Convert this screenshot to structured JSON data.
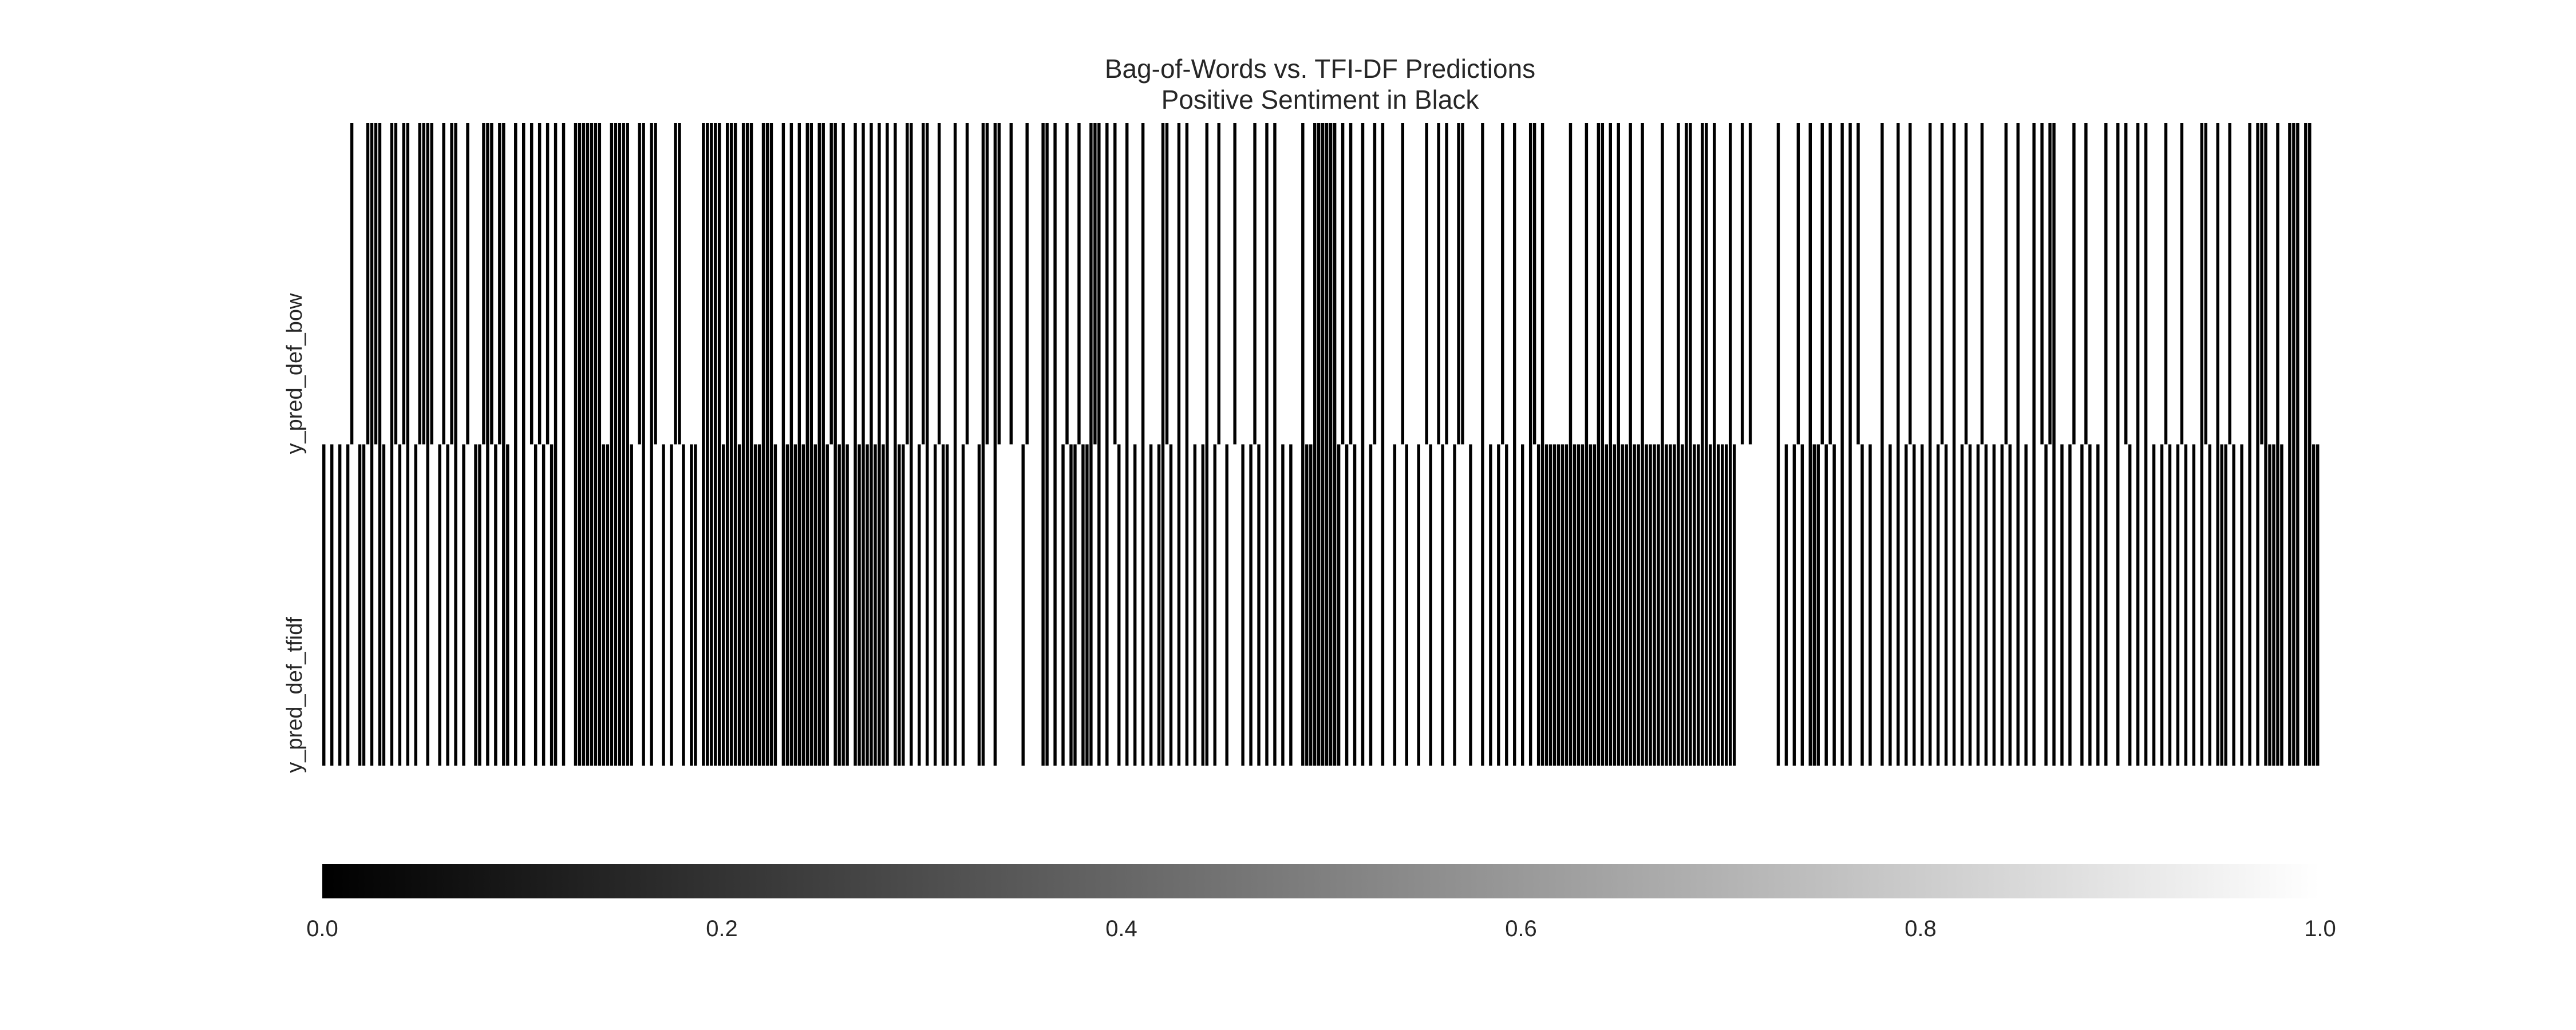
{
  "chart_data": {
    "type": "heatmap",
    "title": "Bag-of-Words vs. TFI-DF Predictions",
    "subtitle": "Positive Sentiment in Black",
    "rows": [
      "y_pred_def_bow",
      "y_pred_def_tfidf"
    ],
    "n_columns": 500,
    "encoding": "0 = black (positive), 1 = white",
    "positive_columns": {
      "y_pred_def_bow": [
        7,
        11,
        12,
        13,
        14,
        17,
        18,
        20,
        21,
        24,
        25,
        26,
        27,
        30,
        32,
        33,
        36,
        40,
        41,
        42,
        44,
        45,
        48,
        50,
        52,
        54,
        56,
        58,
        60,
        63,
        64,
        65,
        66,
        67,
        68,
        69,
        72,
        73,
        74,
        75,
        76,
        79,
        80,
        82,
        83,
        88,
        89,
        95,
        96,
        97,
        98,
        99,
        101,
        102,
        103,
        105,
        106,
        107,
        110,
        111,
        112,
        115,
        117,
        119,
        121,
        122,
        124,
        125,
        127,
        128,
        130,
        133,
        135,
        137,
        139,
        141,
        143,
        146,
        147,
        150,
        151,
        154,
        158,
        161,
        165,
        166,
        168,
        169,
        172,
        176,
        180,
        181,
        183,
        186,
        189,
        192,
        193,
        194,
        196,
        198,
        201,
        205,
        210,
        211,
        214,
        216,
        221,
        224,
        228,
        233,
        236,
        238,
        245,
        248,
        249,
        250,
        251,
        252,
        253,
        255,
        257,
        260,
        263,
        265,
        270,
        276,
        279,
        281,
        284,
        285,
        290,
        295,
        298,
        302,
        303,
        305,
        312,
        316,
        319,
        320,
        322,
        324,
        327,
        330,
        335,
        339,
        341,
        342,
        345,
        346,
        348,
        352,
        355,
        357,
        364,
        369,
        372,
        375,
        377,
        380,
        382,
        384,
        390,
        394,
        397,
        402,
        405,
        408,
        411,
        415,
        421,
        424,
        428,
        430,
        432,
        433,
        438,
        441,
        446,
        449,
        451,
        454,
        456,
        461,
        465,
        470,
        471,
        474,
        477,
        482,
        484,
        485,
        486,
        489,
        492,
        493,
        494,
        496,
        497
      ],
      "y_pred_def_tfidf": [
        0,
        2,
        4,
        6,
        9,
        10,
        12,
        14,
        15,
        17,
        19,
        21,
        23,
        26,
        29,
        31,
        33,
        35,
        38,
        39,
        41,
        43,
        45,
        46,
        48,
        50,
        53,
        55,
        57,
        58,
        60,
        63,
        64,
        65,
        66,
        67,
        68,
        69,
        70,
        71,
        72,
        73,
        74,
        75,
        76,
        77,
        80,
        82,
        85,
        87,
        90,
        92,
        93,
        95,
        96,
        97,
        98,
        99,
        100,
        101,
        102,
        103,
        104,
        105,
        106,
        107,
        108,
        109,
        110,
        111,
        112,
        113,
        115,
        116,
        117,
        118,
        119,
        120,
        121,
        122,
        123,
        124,
        125,
        126,
        128,
        129,
        130,
        131,
        133,
        134,
        135,
        136,
        137,
        138,
        139,
        140,
        141,
        143,
        144,
        145,
        147,
        149,
        151,
        153,
        155,
        156,
        158,
        160,
        164,
        165,
        168,
        175,
        180,
        181,
        183,
        185,
        187,
        188,
        190,
        191,
        192,
        194,
        196,
        199,
        201,
        203,
        205,
        207,
        209,
        210,
        212,
        214,
        216,
        218,
        220,
        221,
        223,
        226,
        230,
        232,
        234,
        236,
        238,
        240,
        242,
        245,
        246,
        247,
        248,
        249,
        250,
        251,
        252,
        253,
        254,
        256,
        258,
        260,
        262,
        265,
        268,
        271,
        274,
        277,
        280,
        283,
        287,
        290,
        292,
        294,
        296,
        298,
        300,
        302,
        304,
        305,
        306,
        307,
        308,
        309,
        310,
        311,
        312,
        313,
        314,
        315,
        316,
        317,
        318,
        319,
        320,
        321,
        322,
        323,
        324,
        325,
        326,
        327,
        328,
        329,
        330,
        331,
        332,
        333,
        334,
        335,
        336,
        337,
        338,
        339,
        340,
        341,
        342,
        343,
        344,
        345,
        346,
        347,
        348,
        349,
        350,
        351,
        352,
        353,
        364,
        366,
        368,
        370,
        372,
        373,
        374,
        376,
        378,
        380,
        382,
        385,
        387,
        390,
        392,
        394,
        396,
        398,
        400,
        402,
        404,
        406,
        408,
        410,
        412,
        414,
        416,
        418,
        420,
        422,
        424,
        426,
        428,
        431,
        433,
        435,
        437,
        440,
        442,
        444,
        446,
        449,
        452,
        454,
        456,
        458,
        460,
        462,
        464,
        466,
        468,
        470,
        472,
        474,
        475,
        476,
        478,
        480,
        482,
        484,
        486,
        487,
        488,
        489,
        490,
        492,
        493,
        494,
        496,
        497,
        498,
        499
      ]
    },
    "colorbar": {
      "orientation": "horizontal",
      "cmap": "gray",
      "range": [
        0.0,
        1.0
      ],
      "ticks": [
        "0.0",
        "0.2",
        "0.4",
        "0.6",
        "0.8",
        "1.0"
      ]
    }
  }
}
